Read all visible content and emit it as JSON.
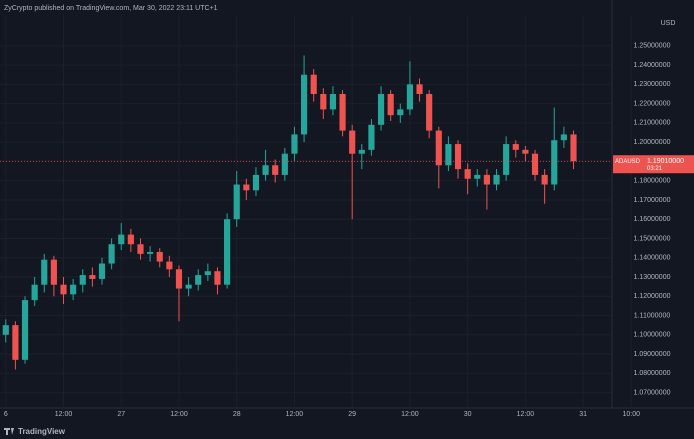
{
  "chart_data": {
    "type": "candlestick",
    "title": "ZyCrypto published on TradingView.com, Mar 30, 2022 23:11 UTC+1",
    "currency": "USD",
    "footer": "TradingView",
    "up_color": "#26a69a",
    "down_color": "#ef5350",
    "grid": true,
    "xlim": [
      -1.2,
      126
    ],
    "ylim": [
      1.062,
      1.266
    ],
    "xticks": [
      {
        "value": 0,
        "label": "6"
      },
      {
        "value": 12,
        "label": "12:00"
      },
      {
        "value": 24,
        "label": "27"
      },
      {
        "value": 36,
        "label": "12:00"
      },
      {
        "value": 48,
        "label": "28"
      },
      {
        "value": 60,
        "label": "12:00"
      },
      {
        "value": 72,
        "label": "29"
      },
      {
        "value": 84,
        "label": "12:00"
      },
      {
        "value": 96,
        "label": "30"
      },
      {
        "value": 108,
        "label": "12:00"
      },
      {
        "value": 120,
        "label": "31"
      },
      {
        "value": 130,
        "label": "10:00"
      }
    ],
    "yticks": [
      {
        "value": 1.07,
        "label": "1.07000000"
      },
      {
        "value": 1.08,
        "label": "1.08000000"
      },
      {
        "value": 1.09,
        "label": "1.09000000"
      },
      {
        "value": 1.1,
        "label": "1.10000000"
      },
      {
        "value": 1.11,
        "label": "1.11000000"
      },
      {
        "value": 1.12,
        "label": "1.12000000"
      },
      {
        "value": 1.13,
        "label": "1.13000000"
      },
      {
        "value": 1.14,
        "label": "1.14000000"
      },
      {
        "value": 1.15,
        "label": "1.15000000"
      },
      {
        "value": 1.16,
        "label": "1.16000000"
      },
      {
        "value": 1.17,
        "label": "1.17000000"
      },
      {
        "value": 1.18,
        "label": "1.18000000"
      },
      {
        "value": 1.19,
        "label": "1.19000000"
      },
      {
        "value": 1.2,
        "label": "1.20000000"
      },
      {
        "value": 1.21,
        "label": "1.21000000"
      },
      {
        "value": 1.22,
        "label": "1.22000000"
      },
      {
        "value": 1.23,
        "label": "1.23000000"
      },
      {
        "value": 1.24,
        "label": "1.24000000"
      },
      {
        "value": 1.25,
        "label": "1.25000000"
      }
    ],
    "last": {
      "symbol": "ADAUSD",
      "value": 1.1901,
      "label": "1.19010000",
      "countdown": "03:21",
      "color": "#ef5350"
    },
    "x": [
      0,
      2,
      4,
      6,
      8,
      10,
      12,
      14,
      16,
      18,
      20,
      22,
      24,
      26,
      28,
      30,
      32,
      34,
      36,
      38,
      40,
      42,
      44,
      46,
      48,
      50,
      52,
      54,
      56,
      58,
      60,
      62,
      64,
      66,
      68,
      70,
      72,
      74,
      76,
      78,
      80,
      82,
      84,
      86,
      88,
      90,
      92,
      94,
      96,
      98,
      100,
      102,
      104,
      106,
      108,
      110,
      112,
      114,
      116,
      118
    ],
    "open": [
      1.1,
      1.105,
      1.087,
      1.118,
      1.126,
      1.139,
      1.126,
      1.121,
      1.126,
      1.131,
      1.129,
      1.137,
      1.147,
      1.152,
      1.147,
      1.142,
      1.143,
      1.138,
      1.134,
      1.124,
      1.126,
      1.131,
      1.133,
      1.126,
      1.16,
      1.178,
      1.175,
      1.183,
      1.188,
      1.183,
      1.194,
      1.204,
      1.235,
      1.225,
      1.217,
      1.225,
      1.206,
      1.194,
      1.196,
      1.209,
      1.225,
      1.214,
      1.217,
      1.23,
      1.225,
      1.206,
      1.188,
      1.199,
      1.186,
      1.181,
      1.183,
      1.178,
      1.183,
      1.199,
      1.196,
      1.194,
      1.183,
      1.178,
      1.201,
      1.204
    ],
    "high": [
      1.108,
      1.107,
      1.12,
      1.13,
      1.142,
      1.141,
      1.13,
      1.129,
      1.134,
      1.135,
      1.14,
      1.15,
      1.158,
      1.155,
      1.15,
      1.146,
      1.145,
      1.141,
      1.136,
      1.13,
      1.134,
      1.137,
      1.135,
      1.163,
      1.185,
      1.181,
      1.187,
      1.196,
      1.191,
      1.197,
      1.208,
      1.245,
      1.238,
      1.228,
      1.229,
      1.227,
      1.209,
      1.199,
      1.212,
      1.229,
      1.227,
      1.22,
      1.242,
      1.233,
      1.227,
      1.208,
      1.203,
      1.201,
      1.189,
      1.186,
      1.186,
      1.186,
      1.203,
      1.201,
      1.198,
      1.196,
      1.186,
      1.218,
      1.208,
      1.206
    ],
    "low": [
      1.096,
      1.082,
      1.085,
      1.115,
      1.122,
      1.12,
      1.116,
      1.118,
      1.122,
      1.125,
      1.126,
      1.134,
      1.144,
      1.143,
      1.139,
      1.138,
      1.135,
      1.13,
      1.107,
      1.12,
      1.123,
      1.128,
      1.121,
      1.124,
      1.156,
      1.17,
      1.172,
      1.18,
      1.179,
      1.18,
      1.19,
      1.2,
      1.221,
      1.212,
      1.214,
      1.203,
      1.16,
      1.186,
      1.193,
      1.206,
      1.211,
      1.21,
      1.214,
      1.221,
      1.202,
      1.176,
      1.185,
      1.181,
      1.173,
      1.177,
      1.165,
      1.175,
      1.18,
      1.192,
      1.19,
      1.18,
      1.168,
      1.175,
      1.197,
      1.186
    ],
    "close": [
      1.105,
      1.087,
      1.118,
      1.126,
      1.139,
      1.126,
      1.121,
      1.126,
      1.131,
      1.129,
      1.137,
      1.147,
      1.152,
      1.147,
      1.142,
      1.143,
      1.138,
      1.134,
      1.124,
      1.126,
      1.131,
      1.133,
      1.126,
      1.16,
      1.178,
      1.175,
      1.183,
      1.188,
      1.183,
      1.194,
      1.204,
      1.235,
      1.225,
      1.217,
      1.225,
      1.206,
      1.194,
      1.196,
      1.209,
      1.225,
      1.214,
      1.217,
      1.23,
      1.225,
      1.206,
      1.188,
      1.199,
      1.186,
      1.181,
      1.183,
      1.178,
      1.183,
      1.199,
      1.196,
      1.194,
      1.183,
      1.178,
      1.201,
      1.204,
      1.1901
    ]
  }
}
